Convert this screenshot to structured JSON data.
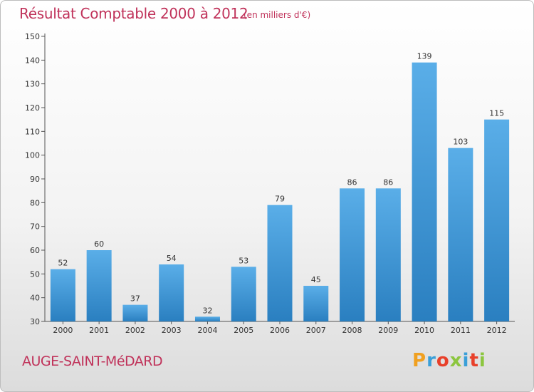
{
  "title": "Résultat Comptable 2000 à 2012",
  "subtitle": "(en milliers d'€)",
  "commune": "AUGE-SAINT-MéDARD",
  "logo": {
    "letters": [
      "P",
      "r",
      "o",
      "x",
      "i",
      "t",
      "i"
    ],
    "colors": [
      "#f0a020",
      "#3a9fd8",
      "#e8402a",
      "#8cc63f",
      "#3a9fd8",
      "#e8402a",
      "#8cc63f"
    ]
  },
  "colors": {
    "bar_top": "#5aaee8",
    "bar_bottom": "#2a7fc0",
    "title": "#c0325a"
  },
  "chart_data": {
    "type": "bar",
    "title": "Résultat Comptable 2000 à 2012",
    "xlabel": "",
    "ylabel": "",
    "categories": [
      "2000",
      "2001",
      "2002",
      "2003",
      "2004",
      "2005",
      "2006",
      "2007",
      "2008",
      "2009",
      "2010",
      "2011",
      "2012"
    ],
    "values": [
      52,
      60,
      37,
      54,
      32,
      53,
      79,
      45,
      86,
      86,
      139,
      103,
      115
    ],
    "ylim": [
      30,
      150
    ],
    "yticks": [
      30,
      40,
      50,
      60,
      70,
      80,
      90,
      100,
      110,
      120,
      130,
      140,
      150
    ],
    "grid": false,
    "legend": "none"
  }
}
